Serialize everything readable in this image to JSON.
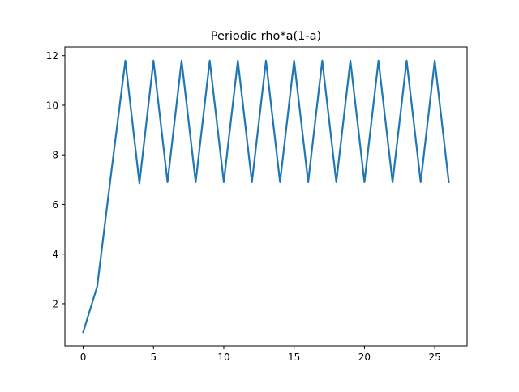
{
  "chart_data": {
    "type": "line",
    "title": "Periodic rho*a(1-a)",
    "xlabel": "",
    "ylabel": "",
    "xlim": [
      -1.3,
      27.3
    ],
    "ylim": [
      0.3,
      12.35
    ],
    "x_ticks": [
      0,
      5,
      10,
      15,
      20,
      25
    ],
    "y_ticks": [
      2,
      4,
      6,
      8,
      10,
      12
    ],
    "grid": false,
    "series": [
      {
        "name": "rho*a(1-a)",
        "color": "#1f77b4",
        "x": [
          0,
          1,
          2,
          3,
          4,
          5,
          6,
          7,
          8,
          9,
          10,
          11,
          12,
          13,
          14,
          15,
          16,
          17,
          18,
          19,
          20,
          21,
          22,
          23,
          24,
          25,
          26
        ],
        "values": [
          0.85,
          2.7,
          7.3,
          11.8,
          6.85,
          11.8,
          6.9,
          11.8,
          6.9,
          11.8,
          6.9,
          11.8,
          6.9,
          11.8,
          6.9,
          11.8,
          6.9,
          11.8,
          6.9,
          11.8,
          6.9,
          11.8,
          6.9,
          11.8,
          6.9,
          11.8,
          6.9
        ]
      }
    ]
  }
}
